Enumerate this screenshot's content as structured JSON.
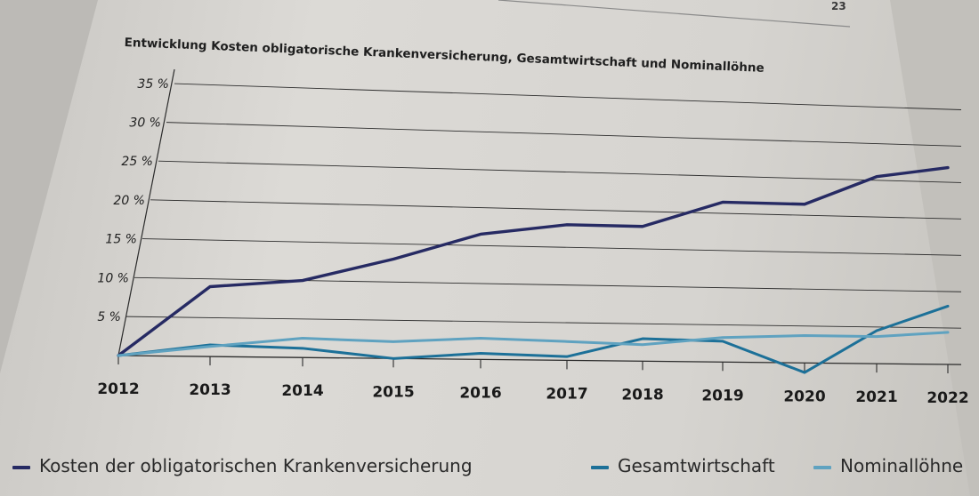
{
  "page": {
    "number": "23"
  },
  "chart_data": {
    "type": "line",
    "title": "Entwicklung Kosten obligatorische Krankenversicherung, Gesamtwirtschaft und Nominallöhne",
    "x": [
      "2012",
      "2013",
      "2014",
      "2015",
      "2016",
      "2017",
      "2018",
      "2019",
      "2020",
      "2021",
      "2022"
    ],
    "y_ticks": [
      {
        "value": 5,
        "label": "5 %"
      },
      {
        "value": 10,
        "label": "10 %"
      },
      {
        "value": 15,
        "label": "15 %"
      },
      {
        "value": 20,
        "label": "20 %"
      },
      {
        "value": 25,
        "label": "25 %"
      },
      {
        "value": 30,
        "label": "30 %"
      },
      {
        "value": 35,
        "label": "35 %"
      }
    ],
    "ylim": [
      0,
      35
    ],
    "xlabel": "",
    "ylabel": "",
    "grid": true,
    "legend_position": "bottom",
    "series": [
      {
        "name": "Kosten der obligatorischen Krankenversicherung",
        "color": "#262a63",
        "values": [
          0,
          9,
          10,
          13,
          16.5,
          18,
          18,
          21.5,
          21.5,
          25.5,
          27
        ]
      },
      {
        "name": "Gesamtwirtschaft",
        "color": "#1c7098",
        "values": [
          0,
          1.5,
          1.2,
          0,
          0.8,
          0.5,
          3,
          2.8,
          -1.3,
          4.5,
          8
        ]
      },
      {
        "name": "Nominallöhne",
        "color": "#5fa2c0",
        "values": [
          0,
          1.3,
          2.5,
          2.2,
          2.8,
          2.5,
          2.2,
          3.3,
          3.7,
          3.7,
          4.4
        ]
      }
    ]
  }
}
